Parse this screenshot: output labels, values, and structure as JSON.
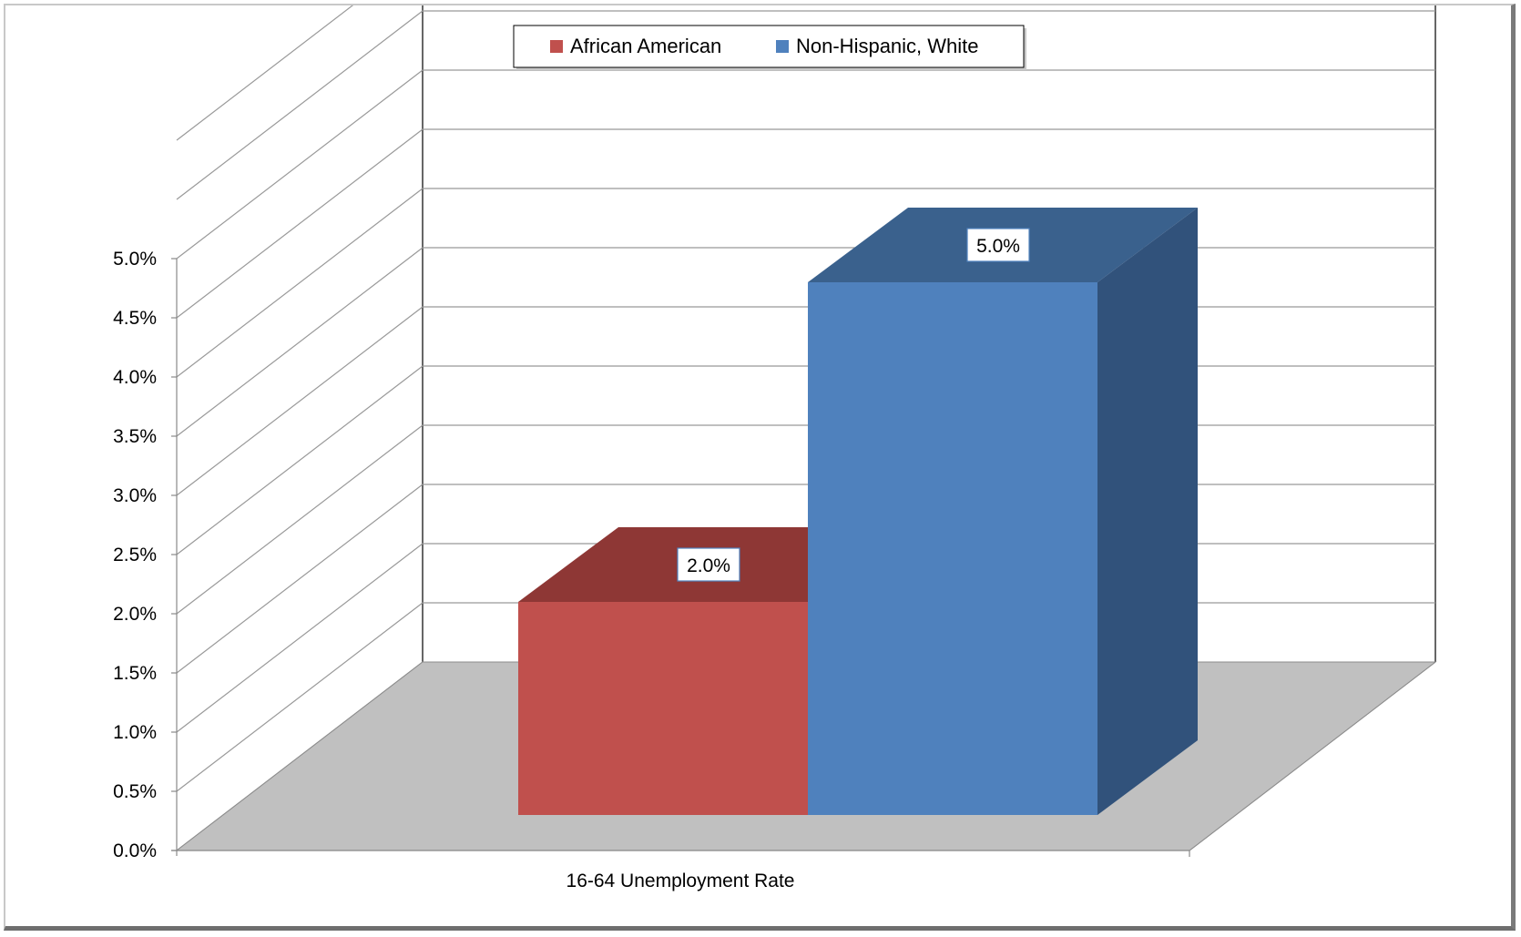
{
  "chart_data": {
    "type": "bar",
    "style": "3d-clustered-column",
    "categories": [
      "16-64 Unemployment Rate"
    ],
    "series": [
      {
        "name": "African American",
        "values": [
          2.0
        ],
        "color": "#c0504d",
        "top_color": "#8e3735",
        "side_color": "#8e3735",
        "data_label": "2.0%"
      },
      {
        "name": "Non-Hispanic, White",
        "values": [
          5.0
        ],
        "color": "#4f81bd",
        "top_color": "#3a618d",
        "side_color": "#31527b",
        "data_label": "5.0%"
      }
    ],
    "yticks": [
      "0.0%",
      "0.5%",
      "1.0%",
      "1.5%",
      "2.0%",
      "2.5%",
      "3.0%",
      "3.5%",
      "4.0%",
      "4.5%",
      "5.0%"
    ],
    "ylim": [
      0,
      5.0
    ],
    "grid": true,
    "legend": "top-center",
    "title": "",
    "xlabel": "",
    "ylabel": ""
  }
}
